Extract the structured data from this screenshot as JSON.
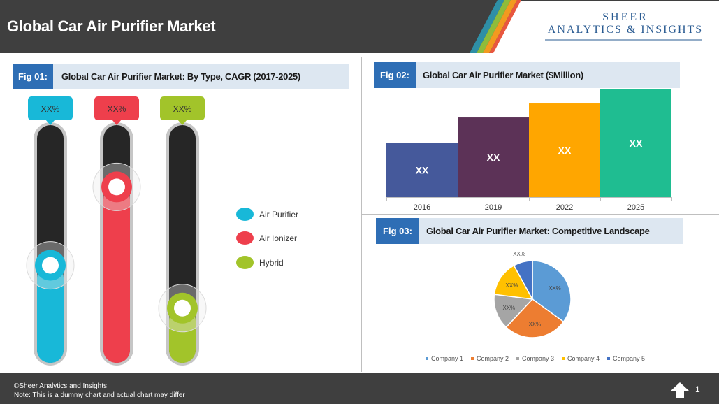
{
  "header": {
    "title": "Global Car Air Purifier Market"
  },
  "logo": {
    "line1": "SHEER",
    "line2": "ANALYTICS & INSIGHTS"
  },
  "figures": [
    {
      "tag": "Fig 01:",
      "title": "Global Car Air Purifier Market: By Type, CAGR (2017-2025)"
    },
    {
      "tag": "Fig 02:",
      "title": "Global Car Air Purifier Market ($Million)"
    },
    {
      "tag": "Fig 03:",
      "title": "Global Car Air Purifier Market: Competitive Landscape"
    }
  ],
  "colors": {
    "header": "#3f3f3f",
    "accent": "#2e6eb5",
    "band": "#dde7f1"
  },
  "chart_data": [
    {
      "type": "bar",
      "title": "Global Car Air Purifier Market: By Type, CAGR (2017-2025)",
      "categories": [
        "Air Purifier",
        "Air Ionizer",
        "Hybrid"
      ],
      "colors": [
        "#18b8d8",
        "#ee3f4c",
        "#a2c42a"
      ],
      "values": [
        0.41,
        0.74,
        0.23
      ],
      "labels": [
        "XX%",
        "XX%",
        "XX%"
      ],
      "ylim": [
        0,
        1
      ]
    },
    {
      "type": "bar",
      "title": "Global Car Air Purifier Market ($Million)",
      "categories": [
        "2016",
        "2019",
        "2022",
        "2025"
      ],
      "values": [
        50,
        74,
        87,
        100
      ],
      "labels": [
        "XX",
        "XX",
        "XX",
        "XX"
      ],
      "colors": [
        "#45599b",
        "#5c3257",
        "#ffa600",
        "#1fbd91"
      ],
      "ylim": [
        0,
        100
      ]
    },
    {
      "type": "pie",
      "title": "Global Car Air Purifier Market: Competitive Landscape",
      "categories": [
        "Company 1",
        "Company 2",
        "Company 3",
        "Company 4",
        "Company 5"
      ],
      "values": [
        35,
        27,
        15,
        15,
        8
      ],
      "labels": [
        "XX%",
        "XX%",
        "XX%",
        "XX%",
        "XX%"
      ],
      "colors": [
        "#5b9bd5",
        "#ed7d31",
        "#a5a5a5",
        "#ffc000",
        "#4472c4"
      ]
    }
  ],
  "footer": {
    "copyright": "©Sheer Analytics and Insights",
    "note": "Note: This is a dummy chart and actual chart may differ",
    "page": "1"
  }
}
